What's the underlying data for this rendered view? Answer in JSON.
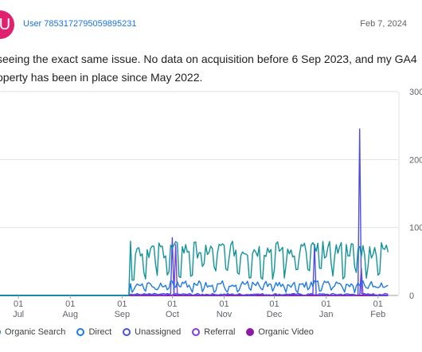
{
  "post": {
    "avatar_letter": "U",
    "avatar_color": "#e0216f",
    "username": "User 7853172795059895231",
    "date": "Feb 7, 2024",
    "body_line1": "seeing the exact same issue. No data on acquisition before 6 Sep 2023, and my GA4",
    "body_line2": "operty has been in place since May 2022."
  },
  "chart_data": {
    "type": "line",
    "y_ticks": [
      "300",
      "200",
      "100",
      "0"
    ],
    "ylim": [
      0,
      300
    ],
    "grid": true,
    "legend_position": "bottom",
    "x_ticks": [
      {
        "day": "01",
        "month": "Jul",
        "date": "2023-07-01"
      },
      {
        "day": "01",
        "month": "Aug",
        "date": "2023-08-01"
      },
      {
        "day": "01",
        "month": "Sep",
        "date": "2023-09-01"
      },
      {
        "day": "01",
        "month": "Oct",
        "date": "2023-10-01"
      },
      {
        "day": "01",
        "month": "Nov",
        "date": "2023-11-01"
      },
      {
        "day": "01",
        "month": "Dec",
        "date": "2023-12-01"
      },
      {
        "day": "01",
        "month": "Jan",
        "date": "2024-01-01"
      },
      {
        "day": "01",
        "month": "Feb",
        "date": "2024-02-01"
      }
    ],
    "data_start_date": "2023-09-06",
    "series": [
      {
        "name": "Organic Search",
        "color": "#12939a",
        "swatch": "outline"
      },
      {
        "name": "Direct",
        "color": "#1f7ae0",
        "swatch": "outline"
      },
      {
        "name": "Unassigned",
        "color": "#4b4fe0",
        "swatch": "outline"
      },
      {
        "name": "Referral",
        "color": "#7b3fe4",
        "swatch": "outline"
      },
      {
        "name": "Organic Video",
        "color": "#8e1ba8",
        "swatch": "filled"
      }
    ],
    "spikes": [
      {
        "series": "Unassigned",
        "date": "2023-10-01",
        "value": 85
      },
      {
        "series": "Referral",
        "date": "2023-10-03",
        "value": 75
      },
      {
        "series": "Unassigned",
        "date": "2023-12-25",
        "value": 75
      },
      {
        "series": "Unassigned",
        "date": "2024-01-21",
        "value": 245
      },
      {
        "series": "Referral",
        "date": "2024-01-22",
        "value": 40
      }
    ]
  }
}
